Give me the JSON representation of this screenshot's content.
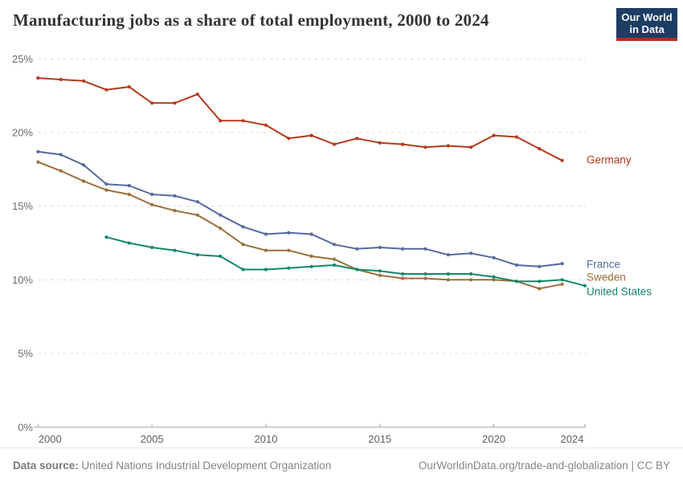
{
  "header": {
    "title": "Manufacturing jobs as a share of total employment, 2000 to 2024",
    "logo": {
      "line1": "Our World",
      "line2": "in Data",
      "bg": "#1d3d63",
      "accent": "#b52d21"
    }
  },
  "chart_data": {
    "type": "line",
    "x": [
      2000,
      2001,
      2002,
      2003,
      2004,
      2005,
      2006,
      2007,
      2008,
      2009,
      2010,
      2011,
      2012,
      2013,
      2014,
      2015,
      2016,
      2017,
      2018,
      2019,
      2020,
      2021,
      2022,
      2023,
      2024
    ],
    "x_ticks": [
      2000,
      2005,
      2010,
      2015,
      2020,
      2024
    ],
    "x_tick_labels": [
      "2000",
      "2005",
      "2010",
      "2015",
      "2020",
      "2024"
    ],
    "y_ticks": [
      0,
      5,
      10,
      15,
      20,
      25
    ],
    "y_tick_labels": [
      "0%",
      "5%",
      "10%",
      "15%",
      "20%",
      "25%"
    ],
    "ylim": [
      0,
      25
    ],
    "xlim": [
      2000,
      2024
    ],
    "grid": "horizontal-dashed",
    "legend_position": "right-end-labels",
    "series": [
      {
        "name": "Germany",
        "color": "#b5391b",
        "values": [
          23.7,
          23.6,
          23.5,
          22.9,
          23.1,
          22.0,
          22.0,
          22.6,
          20.8,
          20.8,
          20.5,
          19.6,
          19.8,
          19.2,
          19.6,
          19.3,
          19.2,
          19.0,
          19.1,
          19.0,
          19.8,
          19.7,
          18.9,
          18.1,
          null
        ]
      },
      {
        "name": "France",
        "color": "#54699e",
        "values": [
          18.7,
          18.5,
          17.8,
          16.5,
          16.4,
          15.8,
          15.7,
          15.3,
          14.4,
          13.6,
          13.1,
          13.2,
          13.1,
          12.4,
          12.1,
          12.2,
          12.1,
          12.1,
          11.7,
          11.8,
          11.5,
          11.0,
          10.9,
          11.1,
          null
        ]
      },
      {
        "name": "Sweden",
        "color": "#9a6e3a",
        "values": [
          18.0,
          17.4,
          16.7,
          16.1,
          15.8,
          15.1,
          14.7,
          14.4,
          13.5,
          12.4,
          12.0,
          12.0,
          11.6,
          11.4,
          10.7,
          10.3,
          10.1,
          10.1,
          10.0,
          10.0,
          10.0,
          9.9,
          9.4,
          9.7,
          null
        ]
      },
      {
        "name": "United States",
        "color": "#12876a",
        "values": [
          null,
          null,
          null,
          12.9,
          12.5,
          12.2,
          12.0,
          11.7,
          11.6,
          10.7,
          10.7,
          10.8,
          10.9,
          11.0,
          10.7,
          10.6,
          10.4,
          10.4,
          10.4,
          10.4,
          10.2,
          9.9,
          9.9,
          10.0,
          9.6
        ]
      }
    ],
    "end_label_y": {
      "Germany": 199,
      "France": 329,
      "Sweden": 345,
      "United States": 363
    }
  },
  "footer": {
    "datasource_label": "Data source:",
    "datasource_value": " United Nations Industrial Development Organization",
    "link": "OurWorldinData.org/trade-and-globalization",
    "separator": " | ",
    "license": "CC BY"
  }
}
